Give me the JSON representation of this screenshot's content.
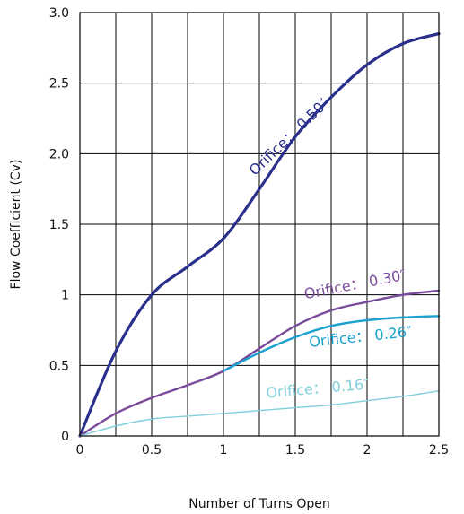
{
  "chart_data": {
    "type": "line",
    "title": "",
    "xlabel": "Number of Turns Open",
    "ylabel": "Flow Coefficient (Cv)",
    "xlim": [
      0,
      2.5
    ],
    "ylim": [
      0,
      3.0
    ],
    "x_ticks": [
      "0",
      "0.5",
      "1",
      "1.5",
      "2",
      "2.5"
    ],
    "y_ticks": [
      "0",
      "0.5",
      "1",
      "1.5",
      "2.0",
      "2.5",
      "3.0"
    ],
    "grid": true,
    "series": [
      {
        "name": "Orifice： 0.50″",
        "color": "#2a2f8c",
        "x": [
          0,
          0.25,
          0.5,
          0.75,
          1.0,
          1.25,
          1.5,
          1.75,
          2.0,
          2.25,
          2.5
        ],
        "y": [
          0,
          0.6,
          1.0,
          1.2,
          1.4,
          1.75,
          2.12,
          2.4,
          2.63,
          2.78,
          2.85
        ]
      },
      {
        "name": "Orifice： 0.30″",
        "color": "#7b4b9b",
        "x": [
          0,
          0.25,
          0.5,
          0.75,
          1.0,
          1.25,
          1.5,
          1.75,
          2.0,
          2.25,
          2.5
        ],
        "y": [
          0,
          0.16,
          0.27,
          0.36,
          0.46,
          0.62,
          0.78,
          0.89,
          0.95,
          1.0,
          1.03
        ]
      },
      {
        "name": "Orifice： 0.26″",
        "color": "#1aa1cf",
        "x": [
          1.0,
          1.25,
          1.5,
          1.75,
          2.0,
          2.25,
          2.5
        ],
        "y": [
          0.46,
          0.59,
          0.7,
          0.78,
          0.82,
          0.84,
          0.85
        ]
      },
      {
        "name": "Orifice： 0.16″",
        "color": "#7fd0dc",
        "x": [
          0,
          0.25,
          0.5,
          0.75,
          1.0,
          1.25,
          1.5,
          1.75,
          2.0,
          2.25,
          2.5
        ],
        "y": [
          0,
          0.07,
          0.12,
          0.14,
          0.16,
          0.18,
          0.2,
          0.22,
          0.25,
          0.28,
          0.32
        ]
      }
    ]
  }
}
